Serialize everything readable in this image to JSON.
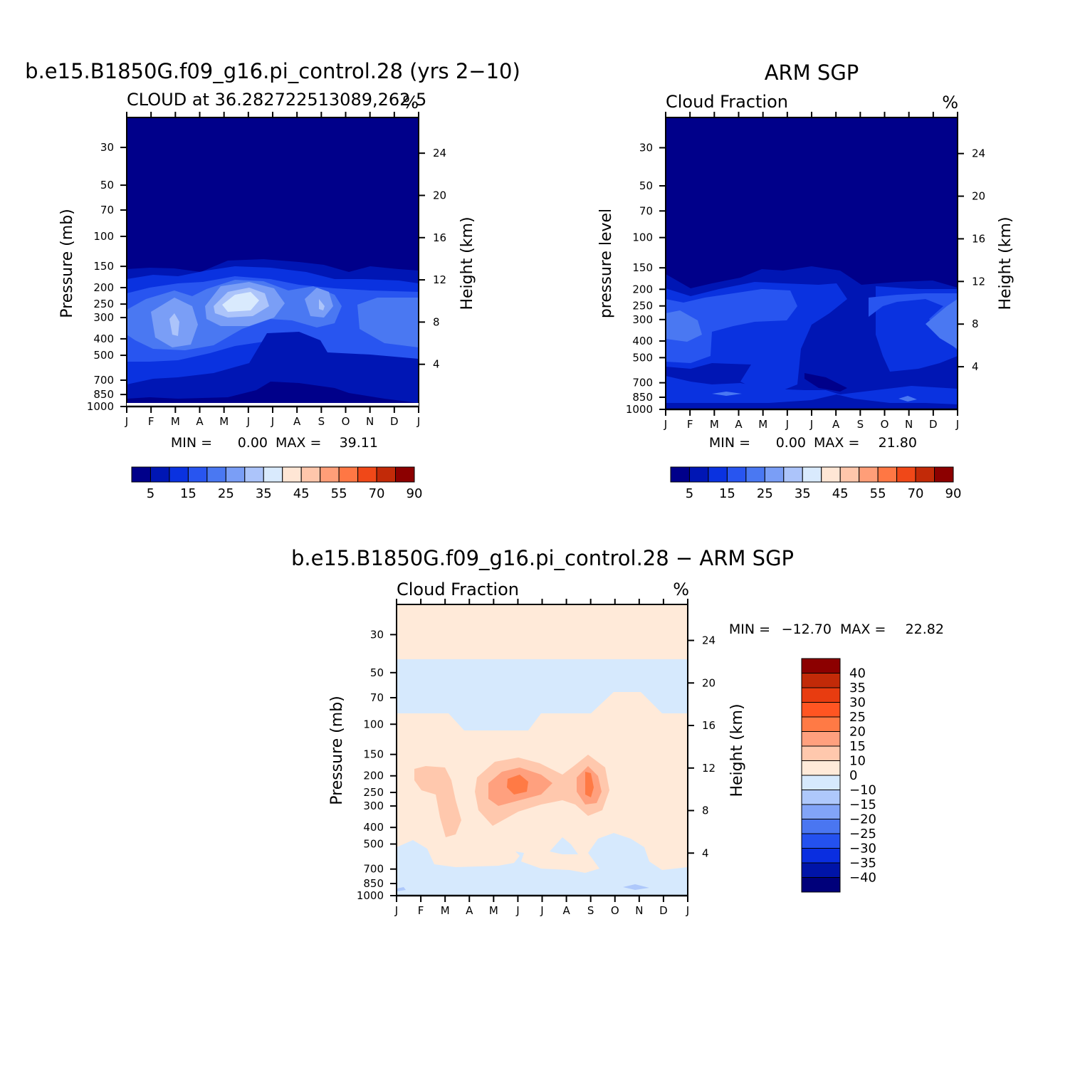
{
  "chart_data": [
    {
      "type": "heatmap",
      "id": "p1",
      "title": "b.e15.B1850G.f09_g16.pi_control.28 (yrs 2−10)",
      "subtitle": "CLOUD at 36.282722513089,262.5",
      "units": "%",
      "ylabel": "Pressure (mb)",
      "y2label": "Height (km)",
      "xticks": [
        "J",
        "F",
        "M",
        "A",
        "M",
        "J",
        "J",
        "A",
        "S",
        "O",
        "N",
        "D",
        "J"
      ],
      "yticks": [
        "30",
        "50",
        "70",
        "100",
        "150",
        "200",
        "250",
        "300",
        "400",
        "500",
        "700",
        "850",
        "1000"
      ],
      "y2ticks": [
        "24",
        "20",
        "16",
        "12",
        "8",
        "4"
      ],
      "min_label": "MIN =",
      "min_value": "0.00",
      "max_label": "MAX =",
      "max_value": "39.11",
      "colorbar_labels": [
        "5",
        "15",
        "25",
        "35",
        "45",
        "55",
        "70",
        "90"
      ]
    },
    {
      "type": "heatmap",
      "id": "p2",
      "title": "ARM SGP",
      "subtitle": "Cloud Fraction",
      "units": "%",
      "ylabel": "pressure level",
      "y2label": "Height (km)",
      "xticks": [
        "J",
        "F",
        "M",
        "A",
        "M",
        "J",
        "J",
        "A",
        "S",
        "O",
        "N",
        "D",
        "J"
      ],
      "yticks": [
        "30",
        "50",
        "70",
        "100",
        "150",
        "200",
        "250",
        "300",
        "400",
        "500",
        "700",
        "850",
        "1000"
      ],
      "y2ticks": [
        "24",
        "20",
        "16",
        "12",
        "8",
        "4"
      ],
      "min_label": "MIN =",
      "min_value": "0.00",
      "max_label": "MAX =",
      "max_value": "21.80",
      "colorbar_labels": [
        "5",
        "15",
        "25",
        "35",
        "45",
        "55",
        "70",
        "90"
      ]
    },
    {
      "type": "heatmap",
      "id": "p3",
      "title": "b.e15.B1850G.f09_g16.pi_control.28 − ARM SGP",
      "subtitle": "Cloud Fraction",
      "units": "%",
      "ylabel": "Pressure (mb)",
      "y2label": "Height (km)",
      "xticks": [
        "J",
        "F",
        "M",
        "A",
        "M",
        "J",
        "J",
        "A",
        "S",
        "O",
        "N",
        "D",
        "J"
      ],
      "yticks": [
        "30",
        "50",
        "70",
        "100",
        "150",
        "200",
        "250",
        "300",
        "400",
        "500",
        "700",
        "850",
        "1000"
      ],
      "y2ticks": [
        "24",
        "20",
        "16",
        "12",
        "8",
        "4"
      ],
      "min_label": "MIN =",
      "min_value": "−12.70",
      "max_label": "MAX =",
      "max_value": "22.82",
      "colorbar_labels": [
        "40",
        "35",
        "30",
        "25",
        "20",
        "15",
        "10",
        "0",
        "−10",
        "−15",
        "−20",
        "−25",
        "−30",
        "−35",
        "−40"
      ]
    }
  ],
  "colors": {
    "seq": [
      "#00008a",
      "#0016b4",
      "#0a32e0",
      "#2855f0",
      "#4a78f2",
      "#7a9ef6",
      "#acc4fa",
      "#d9eafd",
      "#ffe6d5",
      "#ffc6ab",
      "#ff9e78",
      "#ff7744",
      "#f04818",
      "#c22a08",
      "#8c0000"
    ],
    "diff": [
      "#8c0000",
      "#c22a08",
      "#e83c10",
      "#ff5522",
      "#ff7a45",
      "#ffa07e",
      "#ffc8ad",
      "#ffead9",
      "#d6e9fd",
      "#aec8fb",
      "#82a4f7",
      "#4a76f1",
      "#2451ef",
      "#0a2ee0",
      "#0014a8",
      "#00007a"
    ]
  }
}
